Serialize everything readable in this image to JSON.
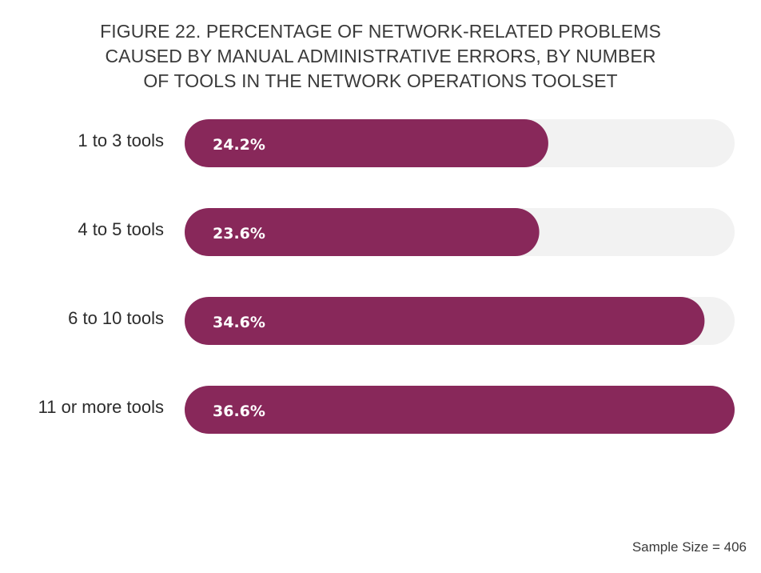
{
  "title_lines": [
    "FIGURE 22. PERCENTAGE OF NETWORK-RELATED PROBLEMS",
    "CAUSED BY MANUAL ADMINISTRATIVE ERRORS, BY NUMBER",
    "OF TOOLS IN THE NETWORK OPERATIONS TOOLSET"
  ],
  "footnote": "Sample Size = 406",
  "chart_data": {
    "type": "bar",
    "orientation": "horizontal",
    "title": "FIGURE 22. PERCENTAGE OF NETWORK-RELATED PROBLEMS CAUSED BY MANUAL ADMINISTRATIVE ERRORS, BY NUMBER OF TOOLS IN THE NETWORK OPERATIONS TOOLSET",
    "categories": [
      "1 to 3 tools",
      "4 to 5 tools",
      "6 to 10 tools",
      "11 or more tools"
    ],
    "values": [
      24.2,
      23.6,
      34.6,
      36.6
    ],
    "value_labels": [
      "24.2%",
      "23.6%",
      "34.6%",
      "36.6%"
    ],
    "xlim": [
      0,
      36.6
    ],
    "grid": false,
    "legend": "none",
    "colors": {
      "bar": "#88285a",
      "track": "#f2f2f2",
      "bar_label": "#ffffff",
      "category_label": "#2b2b2b"
    }
  }
}
